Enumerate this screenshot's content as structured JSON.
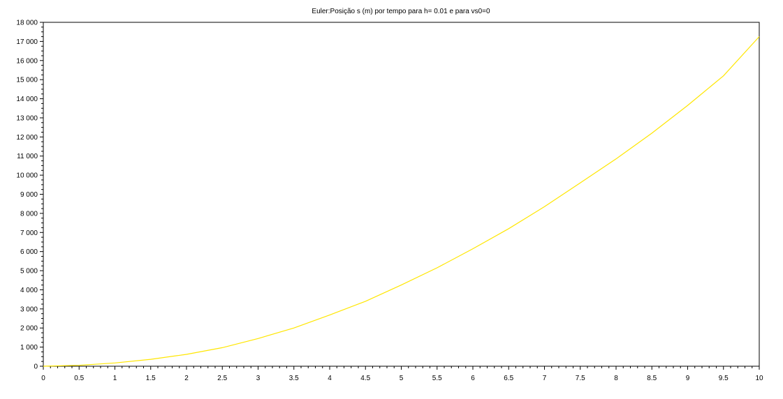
{
  "chart_data": {
    "type": "line",
    "title": "Euler:Posição s (m) por tempo para h= 0.01 e para vs0=0",
    "xlabel": "",
    "ylabel": "",
    "xlim": [
      0,
      10
    ],
    "ylim": [
      0,
      18000
    ],
    "x_ticks": [
      "0",
      "0.5",
      "1",
      "1.5",
      "2",
      "2.5",
      "3",
      "3.5",
      "4",
      "4.5",
      "5",
      "5.5",
      "6",
      "6.5",
      "7",
      "7.5",
      "8",
      "8.5",
      "9",
      "9.5",
      "10"
    ],
    "y_ticks": [
      "0",
      "1 000",
      "2 000",
      "3 000",
      "4 000",
      "5 000",
      "6 000",
      "7 000",
      "8 000",
      "9 000",
      "10 000",
      "11 000",
      "12 000",
      "13 000",
      "14 000",
      "15 000",
      "16 000",
      "17 000",
      "18 000"
    ],
    "grid": false,
    "series": [
      {
        "color": "#ffe600",
        "x": [
          0,
          0.5,
          1,
          1.5,
          2,
          2.5,
          3,
          3.5,
          4,
          4.5,
          5,
          5.5,
          6,
          6.5,
          7,
          7.5,
          8,
          8.5,
          9,
          9.5,
          10
        ],
        "y": [
          0,
          48,
          170,
          360,
          620,
          970,
          1450,
          2000,
          2680,
          3400,
          4250,
          5150,
          6150,
          7200,
          8350,
          9600,
          10850,
          12200,
          13650,
          15200,
          17250
        ]
      }
    ]
  }
}
